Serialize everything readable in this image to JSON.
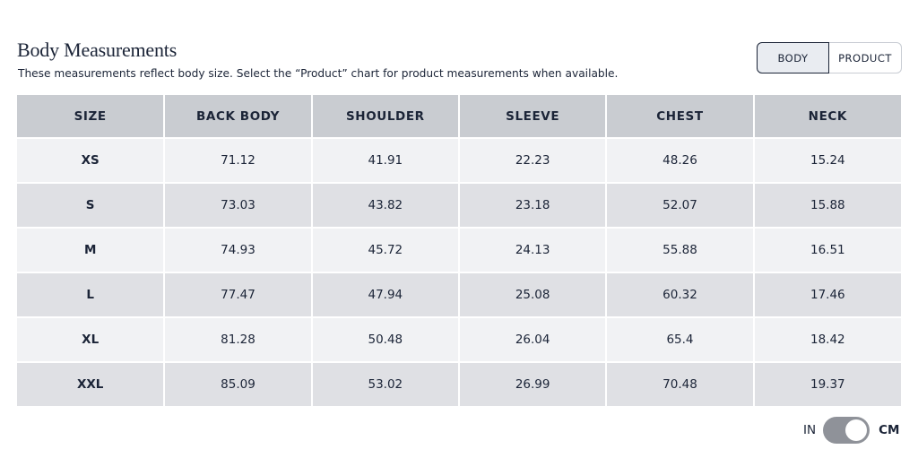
{
  "header": {
    "title": "Body Measurements",
    "subtitle": "These measurements reflect body size. Select the “Product” chart for product measurements when available."
  },
  "chart_toggle": {
    "options": [
      "BODY",
      "PRODUCT"
    ],
    "selected": "BODY"
  },
  "table": {
    "columns": [
      "SIZE",
      "BACK BODY",
      "SHOULDER",
      "SLEEVE",
      "CHEST",
      "NECK"
    ],
    "rows": [
      [
        "XS",
        "71.12",
        "41.91",
        "22.23",
        "48.26",
        "15.24"
      ],
      [
        "S",
        "73.03",
        "43.82",
        "23.18",
        "52.07",
        "15.88"
      ],
      [
        "M",
        "74.93",
        "45.72",
        "24.13",
        "55.88",
        "16.51"
      ],
      [
        "L",
        "77.47",
        "47.94",
        "25.08",
        "60.32",
        "17.46"
      ],
      [
        "XL",
        "81.28",
        "50.48",
        "26.04",
        "65.4",
        "18.42"
      ],
      [
        "XXL",
        "85.09",
        "53.02",
        "26.99",
        "70.48",
        "19.37"
      ]
    ]
  },
  "unit_toggle": {
    "left_label": "IN",
    "right_label": "CM",
    "selected": "CM"
  },
  "colors": {
    "text": "#1b2437",
    "header_bg": "#c9ccd1",
    "row_light": "#f1f2f4",
    "row_dark": "#dfe0e4",
    "switch_track": "#8f9299"
  }
}
